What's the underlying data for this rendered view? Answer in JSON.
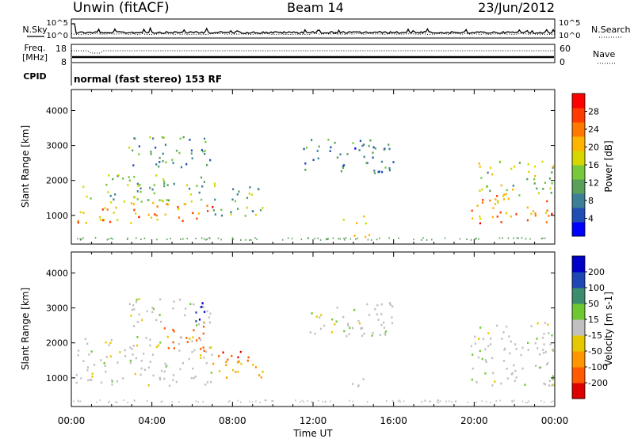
{
  "header": {
    "title": "Unwin (fitACF)",
    "beam": "Beam 14",
    "date": "23/Jun/2012"
  },
  "noise_panel": {
    "left_label": "N.Sky",
    "right_label": "N.Search",
    "left_ticks": [
      "10^5",
      "10^0"
    ],
    "right_ticks": [
      "10^5",
      "10^0"
    ]
  },
  "freq_panel": {
    "left_label": "Freq.",
    "left_unit": "[MHz]",
    "left_ticks": [
      "18",
      "8"
    ],
    "right_label": "Nave",
    "right_ticks": [
      "60",
      "0"
    ]
  },
  "cpid_panel": {
    "label": "CPID",
    "text": "normal (fast stereo) 153 RF"
  },
  "x_axis": {
    "label": "Time UT",
    "ticks": [
      "00:00",
      "04:00",
      "08:00",
      "12:00",
      "16:00",
      "20:00",
      "00:00"
    ]
  },
  "colors": {
    "power": [
      "#0000ff",
      "#1f4fb4",
      "#3c7f96",
      "#5aa05a",
      "#78c83c",
      "#d7d700",
      "#ffb400",
      "#ff7800",
      "#ff3c00",
      "#ff0000"
    ],
    "velocity": [
      "#dc0000",
      "#ff5a00",
      "#ff9600",
      "#e6c800",
      "#c0c0c0",
      "#6ec832",
      "#3c8c6e",
      "#1e46b4",
      "#0000c8"
    ]
  },
  "chart_data": [
    {
      "type": "heatmap",
      "title": "",
      "xlabel": "Time UT",
      "ylabel": "Slant Range [km]",
      "xlim": [
        0,
        24
      ],
      "ylim": [
        180,
        4600
      ],
      "yticks": [
        "1000",
        "2000",
        "3000",
        "4000"
      ],
      "colorbar": {
        "label": "Power [dB]",
        "ticks": [
          "4",
          "8",
          "12",
          "16",
          "20",
          "24",
          "28"
        ],
        "range": [
          0,
          30
        ]
      },
      "regions": [
        {
          "t0": 0.2,
          "t1": 7.0,
          "r0": 800,
          "r1": 1400,
          "value": 22
        },
        {
          "t0": 0.5,
          "t1": 6.8,
          "r0": 1400,
          "r1": 2200,
          "value": 12
        },
        {
          "t0": 2.8,
          "t1": 7.0,
          "r0": 2400,
          "r1": 3300,
          "value": 10
        },
        {
          "t0": 7.0,
          "t1": 9.5,
          "r0": 1000,
          "r1": 2000,
          "value": 12
        },
        {
          "t0": 11.5,
          "t1": 16.0,
          "r0": 2200,
          "r1": 3200,
          "value": 8
        },
        {
          "t0": 13.4,
          "t1": 14.6,
          "r0": 700,
          "r1": 1000,
          "value": 16
        },
        {
          "t0": 13.0,
          "t1": 15.5,
          "r0": 380,
          "r1": 500,
          "value": 20
        },
        {
          "t0": 19.8,
          "t1": 24.0,
          "r0": 800,
          "r1": 1600,
          "value": 22
        },
        {
          "t0": 20.2,
          "t1": 24.0,
          "r0": 1600,
          "r1": 2600,
          "value": 14
        }
      ]
    },
    {
      "type": "heatmap",
      "title": "",
      "xlabel": "Time UT",
      "ylabel": "Slant Range [km]",
      "xlim": [
        0,
        24
      ],
      "ylim": [
        180,
        4600
      ],
      "yticks": [
        "1000",
        "2000",
        "3000",
        "4000"
      ],
      "colorbar": {
        "label": "Velocity [m s-1]",
        "ticks": [
          "-200",
          "-100",
          "-50",
          "-15",
          "15",
          "50",
          "100",
          "200"
        ],
        "range": [
          -250,
          250
        ]
      },
      "regions": [
        {
          "t0": 0.2,
          "t1": 7.0,
          "r0": 800,
          "r1": 2200,
          "value": 0
        },
        {
          "t0": 2.8,
          "t1": 7.0,
          "r0": 2500,
          "r1": 3300,
          "value": 0
        },
        {
          "t0": 4.5,
          "t1": 6.6,
          "r0": 1800,
          "r1": 2500,
          "value": -120
        },
        {
          "t0": 5.6,
          "t1": 6.6,
          "r0": 2600,
          "r1": 3200,
          "value": 200
        },
        {
          "t0": 7.0,
          "t1": 9.5,
          "r0": 1500,
          "r1": 1800,
          "value": -200
        },
        {
          "t0": 7.0,
          "t1": 9.5,
          "r0": 900,
          "r1": 1500,
          "value": -60
        },
        {
          "t0": 11.5,
          "t1": 16.0,
          "r0": 2200,
          "r1": 3200,
          "value": 0
        },
        {
          "t0": 13.4,
          "t1": 14.6,
          "r0": 700,
          "r1": 1000,
          "value": 0
        },
        {
          "t0": 19.8,
          "t1": 24.0,
          "r0": 800,
          "r1": 2600,
          "value": 0
        }
      ]
    }
  ]
}
